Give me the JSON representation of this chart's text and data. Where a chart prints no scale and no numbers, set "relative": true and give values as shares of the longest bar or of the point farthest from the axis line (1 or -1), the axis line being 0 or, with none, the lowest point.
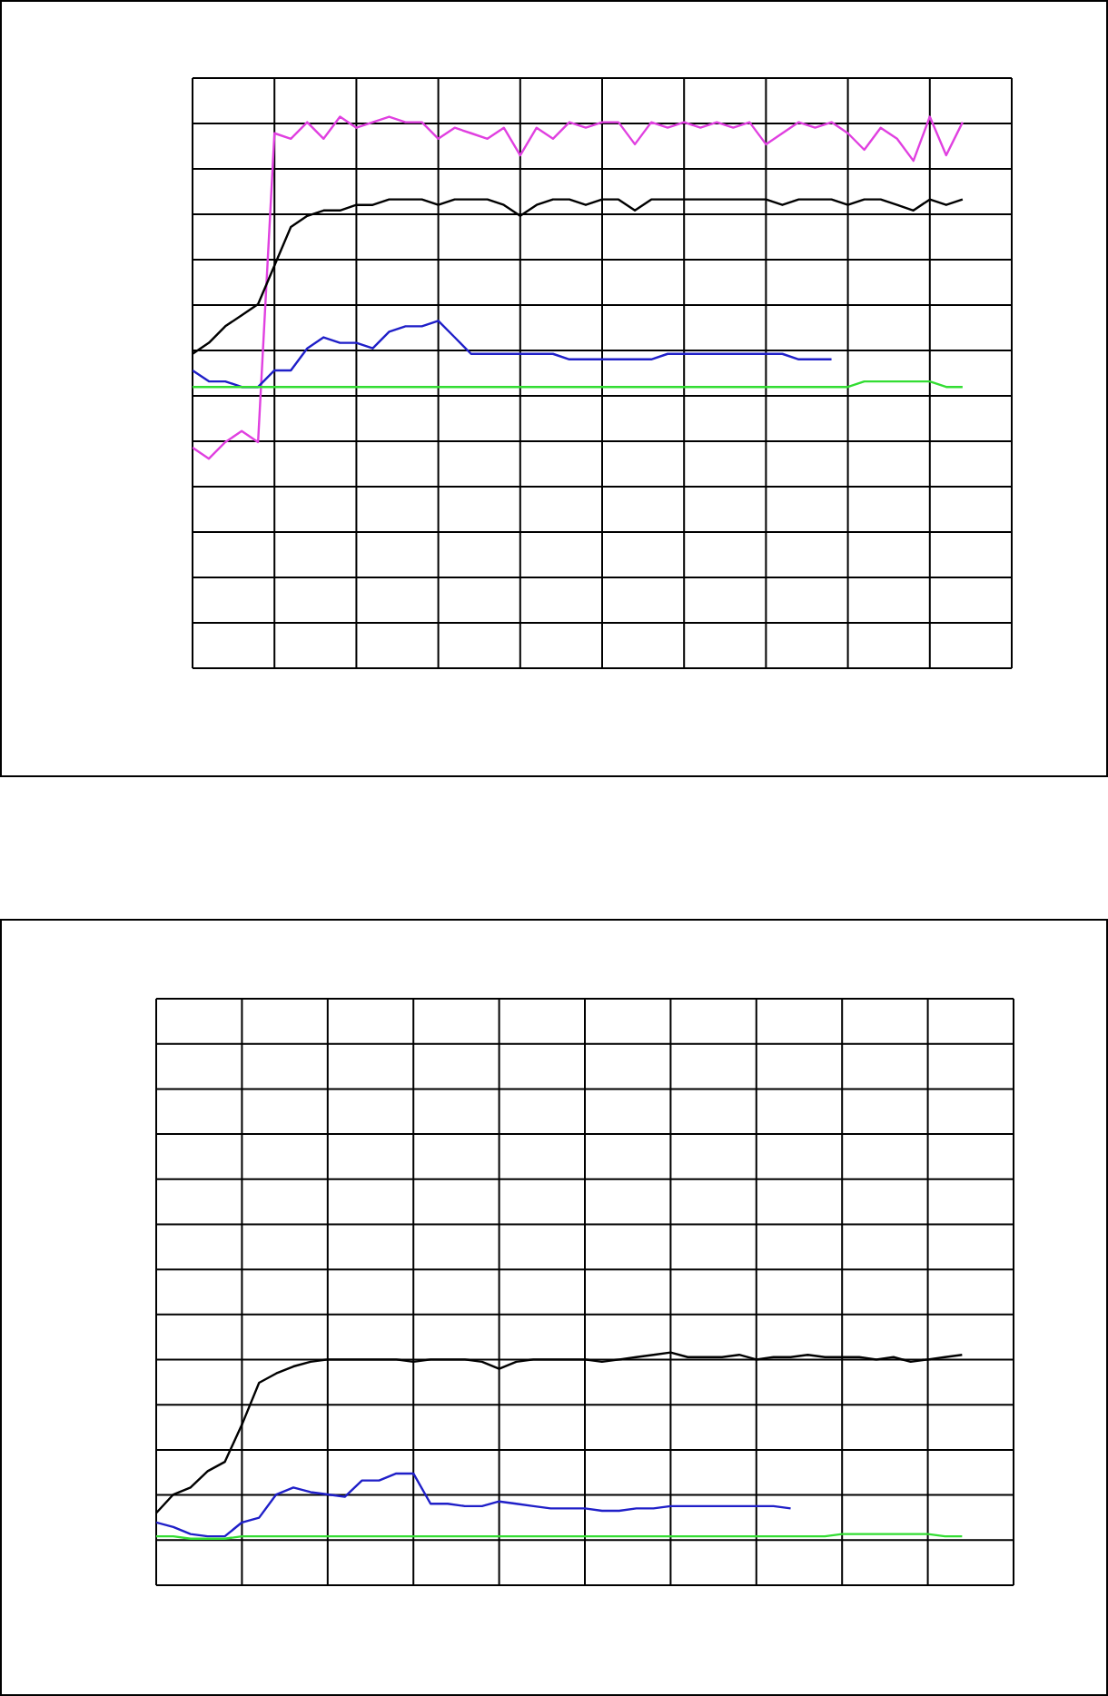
{
  "chart_data": [
    {
      "type": "line",
      "relative": true,
      "grid": true,
      "legend": false,
      "marker": "none",
      "line_style": "solid",
      "categories": [
        null,
        null,
        null,
        null,
        null,
        null,
        null,
        null,
        null,
        null,
        null,
        null,
        null,
        null,
        null,
        null,
        null,
        null,
        null,
        null,
        null,
        null,
        null,
        null,
        null,
        null,
        null,
        null,
        null,
        null,
        null,
        null,
        null,
        null,
        null,
        null,
        null,
        null,
        null,
        null,
        null,
        null,
        null,
        null,
        null,
        null,
        null,
        null,
        null,
        null,
        null
      ],
      "series": [
        {
          "color": "#e040e0",
          "values": [
            0.4,
            0.38,
            0.41,
            0.43,
            0.41,
            0.97,
            0.96,
            0.99,
            0.96,
            1.0,
            0.98,
            0.99,
            1.0,
            0.99,
            0.99,
            0.96,
            0.98,
            0.97,
            0.96,
            0.98,
            0.93,
            0.98,
            0.96,
            0.99,
            0.98,
            0.99,
            0.99,
            0.95,
            0.99,
            0.98,
            0.99,
            0.98,
            0.99,
            0.98,
            0.99,
            0.95,
            0.97,
            0.99,
            0.98,
            0.99,
            0.97,
            0.94,
            0.98,
            0.96,
            0.92,
            1.0,
            0.93,
            0.99,
            null,
            null,
            null
          ]
        },
        {
          "color": "#000000",
          "values": [
            0.57,
            0.59,
            0.62,
            0.64,
            0.66,
            0.73,
            0.8,
            0.82,
            0.83,
            0.83,
            0.84,
            0.84,
            0.85,
            0.85,
            0.85,
            0.84,
            0.85,
            0.85,
            0.85,
            0.84,
            0.82,
            0.84,
            0.85,
            0.85,
            0.84,
            0.85,
            0.85,
            0.83,
            0.85,
            0.85,
            0.85,
            0.85,
            0.85,
            0.85,
            0.85,
            0.85,
            0.84,
            0.85,
            0.85,
            0.85,
            0.84,
            0.85,
            0.85,
            0.84,
            0.83,
            0.85,
            0.84,
            0.85,
            null,
            null,
            null
          ]
        },
        {
          "color": "#1f1fc8",
          "values": [
            0.54,
            0.52,
            0.52,
            0.51,
            0.51,
            0.54,
            0.54,
            0.58,
            0.6,
            0.59,
            0.59,
            0.58,
            0.61,
            0.62,
            0.62,
            0.63,
            0.6,
            0.57,
            0.57,
            0.57,
            0.57,
            0.57,
            0.57,
            0.56,
            0.56,
            0.56,
            0.56,
            0.56,
            0.56,
            0.57,
            0.57,
            0.57,
            0.57,
            0.57,
            0.57,
            0.57,
            0.57,
            0.56,
            0.56,
            0.56,
            null,
            null,
            null,
            null,
            null,
            null,
            null,
            null,
            null,
            null,
            null
          ]
        },
        {
          "color": "#33dd33",
          "values": [
            0.51,
            0.51,
            0.51,
            0.51,
            0.51,
            0.51,
            0.51,
            0.51,
            0.51,
            0.51,
            0.51,
            0.51,
            0.51,
            0.51,
            0.51,
            0.51,
            0.51,
            0.51,
            0.51,
            0.51,
            0.51,
            0.51,
            0.51,
            0.51,
            0.51,
            0.51,
            0.51,
            0.51,
            0.51,
            0.51,
            0.51,
            0.51,
            0.51,
            0.51,
            0.51,
            0.51,
            0.51,
            0.51,
            0.51,
            0.51,
            0.51,
            0.52,
            0.52,
            0.52,
            0.52,
            0.52,
            0.51,
            0.51,
            null,
            null,
            null
          ]
        }
      ]
    },
    {
      "type": "line",
      "relative": true,
      "grid": true,
      "legend": false,
      "marker": "none",
      "line_style": "solid",
      "categories": [
        null,
        null,
        null,
        null,
        null,
        null,
        null,
        null,
        null,
        null,
        null,
        null,
        null,
        null,
        null,
        null,
        null,
        null,
        null,
        null,
        null,
        null,
        null,
        null,
        null,
        null,
        null,
        null,
        null,
        null,
        null,
        null,
        null,
        null,
        null,
        null,
        null,
        null,
        null,
        null,
        null,
        null,
        null,
        null,
        null,
        null,
        null,
        null,
        null,
        null,
        null
      ],
      "series": [
        {
          "color": "#000000",
          "values": [
            0.31,
            0.39,
            0.42,
            0.49,
            0.53,
            0.69,
            0.87,
            0.91,
            0.94,
            0.96,
            0.97,
            0.97,
            0.97,
            0.97,
            0.97,
            0.96,
            0.97,
            0.97,
            0.97,
            0.96,
            0.93,
            0.96,
            0.97,
            0.97,
            0.97,
            0.97,
            0.96,
            0.97,
            0.98,
            0.99,
            1.0,
            0.98,
            0.98,
            0.98,
            0.99,
            0.97,
            0.98,
            0.98,
            0.99,
            0.98,
            0.98,
            0.98,
            0.97,
            0.98,
            0.96,
            0.97,
            0.98,
            0.99,
            null,
            null,
            null
          ]
        },
        {
          "color": "#1f1fc8",
          "values": [
            0.27,
            0.25,
            0.22,
            0.21,
            0.21,
            0.27,
            0.29,
            0.39,
            0.42,
            0.4,
            0.39,
            0.38,
            0.45,
            0.45,
            0.48,
            0.48,
            0.35,
            0.35,
            0.34,
            0.34,
            0.36,
            0.35,
            0.34,
            0.33,
            0.33,
            0.33,
            0.32,
            0.32,
            0.33,
            0.33,
            0.34,
            0.34,
            0.34,
            0.34,
            0.34,
            0.34,
            0.34,
            0.33,
            null,
            null,
            null,
            null,
            null,
            null,
            null,
            null,
            null,
            null,
            null,
            null,
            null
          ]
        },
        {
          "color": "#33dd33",
          "values": [
            0.21,
            0.21,
            0.2,
            0.2,
            0.2,
            0.21,
            0.21,
            0.21,
            0.21,
            0.21,
            0.21,
            0.21,
            0.21,
            0.21,
            0.21,
            0.21,
            0.21,
            0.21,
            0.21,
            0.21,
            0.21,
            0.21,
            0.21,
            0.21,
            0.21,
            0.21,
            0.21,
            0.21,
            0.21,
            0.21,
            0.21,
            0.21,
            0.21,
            0.21,
            0.21,
            0.21,
            0.21,
            0.21,
            0.21,
            0.21,
            0.22,
            0.22,
            0.22,
            0.22,
            0.22,
            0.22,
            0.21,
            0.21,
            null,
            null,
            null
          ]
        }
      ]
    }
  ]
}
